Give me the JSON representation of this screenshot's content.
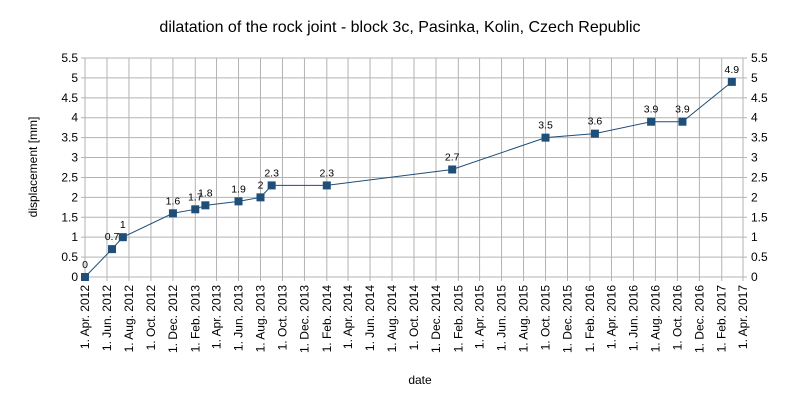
{
  "chart_data": {
    "type": "line",
    "title": "dilatation of the rock joint - block 3c, Pasinka, Kolin, Czech Republic",
    "xlabel": "date",
    "ylabel": "displacement [mm]",
    "ylim": [
      0,
      5.5
    ],
    "yticks": [
      "0",
      "0.5",
      "1",
      "1.5",
      "2",
      "2.5",
      "3",
      "3.5",
      "4",
      "4.5",
      "5",
      "5.5"
    ],
    "xlim": [
      "2012-04-01",
      "2017-04-01"
    ],
    "xticks": [
      {
        "date": "2012-04-01",
        "label": "1. Apr. 2012"
      },
      {
        "date": "2012-06-01",
        "label": "1. Jun. 2012"
      },
      {
        "date": "2012-08-01",
        "label": "1. Aug. 2012"
      },
      {
        "date": "2012-10-01",
        "label": "1. Oct. 2012"
      },
      {
        "date": "2012-12-01",
        "label": "1. Dec. 2012"
      },
      {
        "date": "2013-02-01",
        "label": "1. Feb. 2013"
      },
      {
        "date": "2013-04-01",
        "label": "1. Apr. 2013"
      },
      {
        "date": "2013-06-01",
        "label": "1. Jun. 2013"
      },
      {
        "date": "2013-08-01",
        "label": "1. Aug. 2013"
      },
      {
        "date": "2013-10-01",
        "label": "1. Oct. 2013"
      },
      {
        "date": "2013-12-01",
        "label": "1. Dec. 2013"
      },
      {
        "date": "2014-02-01",
        "label": "1. Feb. 2014"
      },
      {
        "date": "2014-04-01",
        "label": "1. Apr. 2014"
      },
      {
        "date": "2014-06-01",
        "label": "1. Jun. 2014"
      },
      {
        "date": "2014-08-01",
        "label": "1. Aug. 2014"
      },
      {
        "date": "2014-10-01",
        "label": "1. Oct. 2014"
      },
      {
        "date": "2014-12-01",
        "label": "1. Dec. 2014"
      },
      {
        "date": "2015-02-01",
        "label": "1. Feb. 2015"
      },
      {
        "date": "2015-04-01",
        "label": "1. Apr. 2015"
      },
      {
        "date": "2015-06-01",
        "label": "1. Jun. 2015"
      },
      {
        "date": "2015-08-01",
        "label": "1. Aug. 2015"
      },
      {
        "date": "2015-10-01",
        "label": "1. Oct. 2015"
      },
      {
        "date": "2015-12-01",
        "label": "1. Dec. 2015"
      },
      {
        "date": "2016-02-01",
        "label": "1. Feb. 2016"
      },
      {
        "date": "2016-04-01",
        "label": "1. Apr. 2016"
      },
      {
        "date": "2016-06-01",
        "label": "1. Jun. 2016"
      },
      {
        "date": "2016-08-01",
        "label": "1. Aug. 2016"
      },
      {
        "date": "2016-10-01",
        "label": "1. Oct. 2016"
      },
      {
        "date": "2016-12-01",
        "label": "1. Dec. 2016"
      },
      {
        "date": "2017-02-01",
        "label": "1. Feb. 2017"
      },
      {
        "date": "2017-04-01",
        "label": "1. Apr. 2017"
      }
    ],
    "grid": true,
    "legend": "none",
    "series": [
      {
        "color": "#1f4e79",
        "points": [
          {
            "x": "2012-04-01",
            "y": 0,
            "label": "0"
          },
          {
            "x": "2012-06-15",
            "y": 0.7,
            "label": "0.7"
          },
          {
            "x": "2012-07-15",
            "y": 1,
            "label": "1"
          },
          {
            "x": "2012-12-01",
            "y": 1.6,
            "label": "1.6"
          },
          {
            "x": "2013-02-01",
            "y": 1.7,
            "label": "1.7"
          },
          {
            "x": "2013-03-01",
            "y": 1.8,
            "label": "1.8"
          },
          {
            "x": "2013-06-01",
            "y": 1.9,
            "label": "1.9"
          },
          {
            "x": "2013-08-01",
            "y": 2,
            "label": "2"
          },
          {
            "x": "2013-09-01",
            "y": 2.3,
            "label": "2.3"
          },
          {
            "x": "2014-02-01",
            "y": 2.3,
            "label": "2.3"
          },
          {
            "x": "2015-01-15",
            "y": 2.7,
            "label": "2.7"
          },
          {
            "x": "2015-10-01",
            "y": 3.5,
            "label": "3.5"
          },
          {
            "x": "2016-02-15",
            "y": 3.6,
            "label": "3.6"
          },
          {
            "x": "2016-07-20",
            "y": 3.9,
            "label": "3.9"
          },
          {
            "x": "2016-10-15",
            "y": 3.9,
            "label": "3.9"
          },
          {
            "x": "2017-03-01",
            "y": 4.9,
            "label": "4.9"
          }
        ]
      }
    ]
  }
}
